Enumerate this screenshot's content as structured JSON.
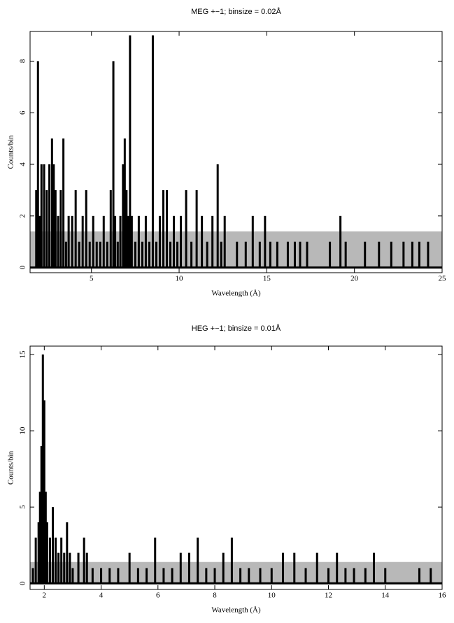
{
  "chart_data": [
    {
      "type": "spectrum",
      "title": "MEG +−1; binsize = 0.02Å",
      "x_label": "Wavelength (Å)",
      "y_label": "Counts/bin",
      "xlim": [
        1.5,
        25
      ],
      "ylim": [
        -0.2,
        9.15
      ],
      "xticks": [
        5,
        10,
        15,
        20,
        25
      ],
      "yticks": [
        0,
        2,
        4,
        6,
        8
      ],
      "band": 1.4,
      "color": "#000000",
      "band_color": "#b8b8b8",
      "x": [
        1.85,
        1.95,
        2.05,
        2.15,
        2.3,
        2.45,
        2.6,
        2.75,
        2.85,
        2.95,
        3.1,
        3.25,
        3.4,
        3.55,
        3.7,
        3.9,
        4.1,
        4.3,
        4.5,
        4.7,
        4.9,
        5.1,
        5.3,
        5.5,
        5.7,
        5.9,
        6.1,
        6.25,
        6.35,
        6.5,
        6.65,
        6.8,
        6.9,
        7.0,
        7.1,
        7.2,
        7.3,
        7.5,
        7.7,
        7.9,
        8.1,
        8.3,
        8.5,
        8.7,
        8.9,
        9.1,
        9.3,
        9.5,
        9.7,
        9.9,
        10.1,
        10.4,
        10.7,
        11.0,
        11.3,
        11.6,
        11.9,
        12.2,
        12.4,
        12.6,
        13.3,
        13.8,
        14.2,
        14.6,
        14.9,
        15.2,
        15.6,
        16.2,
        16.6,
        16.9,
        17.3,
        18.6,
        19.2,
        19.5,
        20.6,
        21.4,
        22.1,
        22.8,
        23.3,
        23.7,
        24.2
      ],
      "values": [
        3,
        8,
        2,
        4,
        4,
        3,
        4,
        5,
        4,
        3,
        2,
        3,
        5,
        1,
        2,
        2,
        3,
        1,
        2,
        3,
        1,
        2,
        1,
        1,
        2,
        1,
        3,
        8,
        2,
        1,
        2,
        4,
        5,
        3,
        2,
        9,
        2,
        1,
        2,
        1,
        2,
        1,
        9,
        1,
        2,
        3,
        3,
        1,
        2,
        1,
        2,
        3,
        1,
        3,
        2,
        1,
        2,
        4,
        1,
        2,
        1,
        1,
        2,
        1,
        2,
        1,
        1,
        1,
        1,
        1,
        1,
        1,
        2,
        1,
        1,
        1,
        1,
        1,
        1,
        1,
        1
      ]
    },
    {
      "type": "spectrum",
      "title": "HEG +−1; binsize = 0.01Å",
      "x_label": "Wavelength (Å)",
      "y_label": "Counts/bin",
      "xlim": [
        1.5,
        16
      ],
      "ylim": [
        -0.4,
        15.55
      ],
      "xticks": [
        2,
        4,
        6,
        8,
        10,
        12,
        14,
        16
      ],
      "yticks": [
        0,
        5,
        10,
        15
      ],
      "band": 1.4,
      "color": "#000000",
      "band_color": "#b8b8b8",
      "x": [
        1.6,
        1.7,
        1.8,
        1.85,
        1.9,
        1.95,
        2.0,
        2.05,
        2.1,
        2.2,
        2.3,
        2.4,
        2.5,
        2.6,
        2.7,
        2.8,
        2.9,
        3.0,
        3.2,
        3.4,
        3.5,
        3.7,
        4.0,
        4.3,
        4.6,
        5.0,
        5.3,
        5.6,
        5.9,
        6.2,
        6.5,
        6.8,
        7.1,
        7.4,
        7.7,
        8.0,
        8.3,
        8.6,
        8.9,
        9.2,
        9.6,
        10.0,
        10.4,
        10.8,
        11.2,
        11.6,
        12.0,
        12.3,
        12.6,
        12.9,
        13.3,
        13.6,
        14.0,
        15.2,
        15.6
      ],
      "values": [
        1,
        3,
        4,
        6,
        9,
        15,
        12,
        6,
        4,
        3,
        5,
        3,
        2,
        3,
        2,
        4,
        2,
        1,
        2,
        3,
        2,
        1,
        1,
        1,
        1,
        2,
        1,
        1,
        3,
        1,
        1,
        2,
        2,
        3,
        1,
        1,
        2,
        3,
        1,
        1,
        1,
        1,
        2,
        2,
        1,
        2,
        1,
        2,
        1,
        1,
        1,
        2,
        1,
        1,
        1
      ]
    }
  ]
}
